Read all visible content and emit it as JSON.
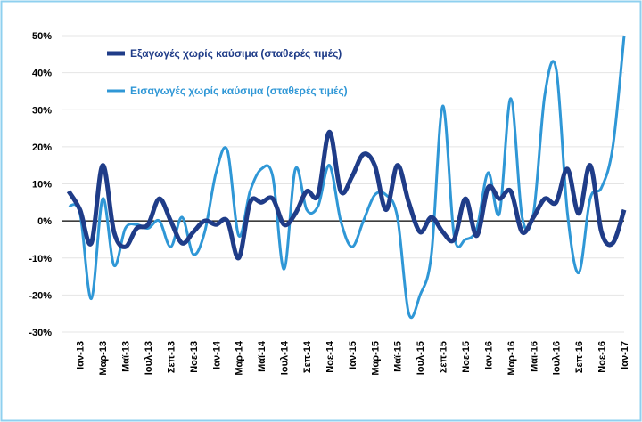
{
  "chart_data": {
    "type": "line",
    "categories": [
      null,
      "Ιαν-13",
      null,
      "Μαρ-13",
      null,
      "Μαϊ-13",
      null,
      "Ιουλ-13",
      null,
      "Σεπ-13",
      null,
      "Νοε-13",
      null,
      "Ιαν-14",
      null,
      "Μαρ-14",
      null,
      "Μαϊ-14",
      null,
      "Ιουλ-14",
      null,
      "Σεπ-14",
      null,
      "Νοε-14",
      null,
      "Ιαν-15",
      null,
      "Μαρ-15",
      null,
      "Μαϊ-15",
      null,
      "Ιουλ-15",
      null,
      "Σεπ-15",
      null,
      "Νοε-15",
      null,
      "Ιαν-16",
      null,
      "Μαρ-16",
      null,
      "Μαϊ-16",
      null,
      "Ιουλ-16",
      null,
      "Σεπ-16",
      null,
      "Νοε-16",
      null,
      "Ιαν-17"
    ],
    "series": [
      {
        "name": "Εξαγωγές χωρίς καύσιμα (σταθερές τιμές)",
        "color": "#1f3c88",
        "values": [
          8,
          3,
          -6,
          15,
          -3,
          -7,
          -2,
          -1,
          6,
          0,
          -6,
          -3,
          0,
          -1,
          0,
          -10,
          5,
          5,
          6,
          -1,
          2,
          8,
          7,
          24,
          8,
          12,
          18,
          15,
          3,
          15,
          5,
          -3,
          1,
          -3,
          -5,
          6,
          -4,
          9,
          6,
          8,
          -3,
          1,
          6,
          5,
          14,
          2,
          15,
          -3,
          -6,
          3
        ]
      },
      {
        "name": "Εισαγωγές χωρίς καύσιμα (σταθερές τιμές)",
        "color": "#2f97d6",
        "values": [
          4,
          2,
          -21,
          6,
          -12,
          -2,
          -1,
          -2,
          0,
          -7,
          1,
          -9,
          -3,
          13,
          19,
          -4,
          8,
          14,
          12,
          -13,
          14,
          3,
          4,
          15,
          0,
          -7,
          0,
          7,
          7,
          1,
          -25,
          -20,
          -9,
          31,
          -4,
          -5,
          -2,
          13,
          2,
          33,
          1,
          2,
          34,
          41,
          2,
          -14,
          6,
          9,
          20,
          50
        ]
      }
    ],
    "ylim": [
      -30,
      50
    ],
    "yticks": [
      {
        "value": -30,
        "label": "-30%"
      },
      {
        "value": -20,
        "label": "-20%"
      },
      {
        "value": -10,
        "label": "-10%"
      },
      {
        "value": 0,
        "label": "0%"
      },
      {
        "value": 10,
        "label": "10%"
      },
      {
        "value": 20,
        "label": "20%"
      },
      {
        "value": 30,
        "label": "30%"
      },
      {
        "value": 40,
        "label": "40%"
      },
      {
        "value": 50,
        "label": "50%"
      }
    ],
    "grid": true
  }
}
